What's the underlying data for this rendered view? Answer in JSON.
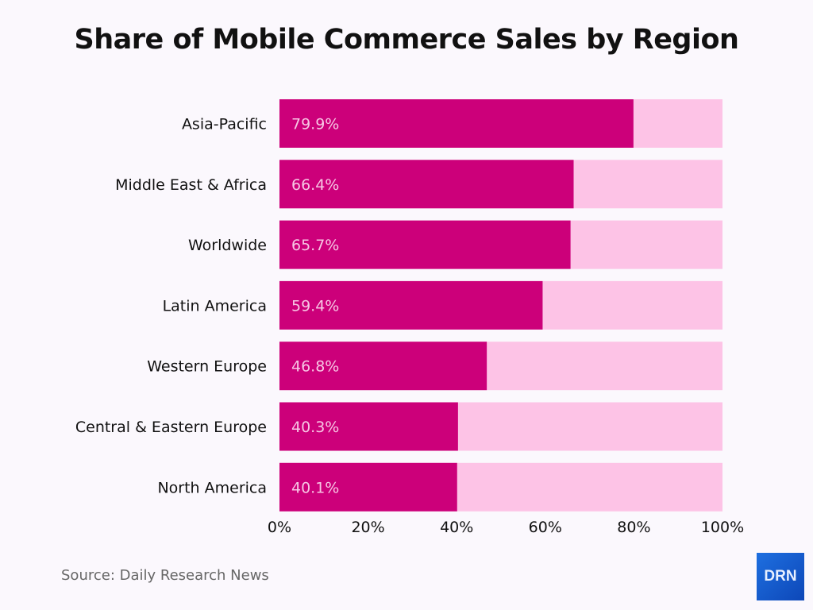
{
  "chart_data": {
    "type": "bar",
    "orientation": "horizontal",
    "title": "Share of Mobile Commerce Sales by Region",
    "categories": [
      "Asia-Pacific",
      "Middle East & Africa",
      "Worldwide",
      "Latin America",
      "Western Europe",
      "Central & Eastern Europe",
      "North America"
    ],
    "values": [
      79.9,
      66.4,
      65.7,
      59.4,
      46.8,
      40.3,
      40.1
    ],
    "data_labels": [
      "79.9%",
      "66.4%",
      "65.7%",
      "59.4%",
      "46.8%",
      "40.3%",
      "40.1%"
    ],
    "xlim": [
      0,
      100
    ],
    "xticks": [
      0,
      20,
      40,
      60,
      80,
      100
    ],
    "xtick_labels": [
      "0%",
      "20%",
      "40%",
      "60%",
      "80%",
      "100%"
    ],
    "grid": false,
    "colors": {
      "bar": "#cc007a",
      "background_bar": "#fdc3e6",
      "label": "#f7c6e4"
    }
  },
  "source": "Source: Daily Research News",
  "logo": "DRN"
}
